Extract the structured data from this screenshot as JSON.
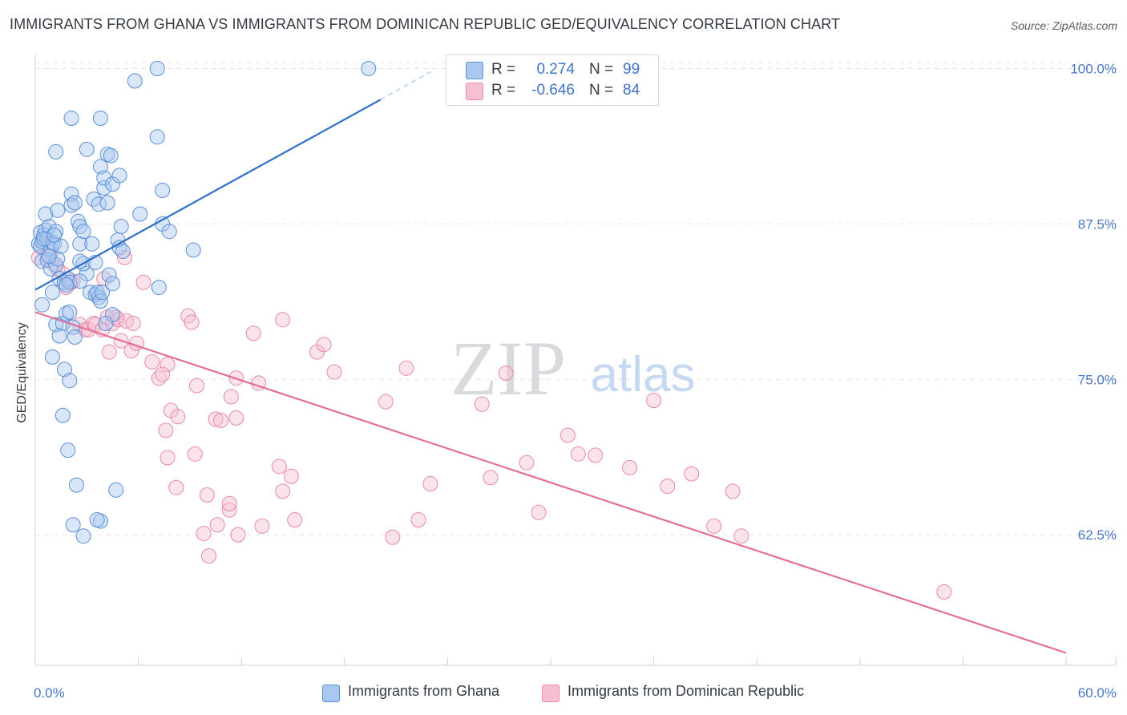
{
  "title": "IMMIGRANTS FROM GHANA VS IMMIGRANTS FROM DOMINICAN REPUBLIC GED/EQUIVALENCY CORRELATION CHART",
  "source": "Source: ZipAtlas.com",
  "watermark": {
    "zip": "ZIP",
    "atlas": "atlas"
  },
  "legend_top": {
    "rows": [
      {
        "r_label": "R =",
        "r_value": "0.274",
        "n_label": "N =",
        "n_value": "99"
      },
      {
        "r_label": "R =",
        "r_value": "-0.646",
        "n_label": "N =",
        "n_value": "84"
      }
    ]
  },
  "legend_bottom": [
    {
      "label": "Immigrants from Ghana"
    },
    {
      "label": "Immigrants from Dominican Republic"
    }
  ],
  "colors": {
    "ghana_fill": "#a8c8f0",
    "ghana_stroke": "#5b8fd6",
    "ghana_line": "#2f6fc9",
    "dr_fill": "#f6c0d2",
    "dr_stroke": "#e889a8",
    "dr_line": "#e0709a",
    "tick_text": "#4a78c8",
    "grid": "#e3e5e8"
  },
  "chart_data": {
    "type": "scatter",
    "title": "IMMIGRANTS FROM GHANA VS IMMIGRANTS FROM DOMINICAN REPUBLIC GED/EQUIVALENCY CORRELATION CHART",
    "xlabel": "",
    "ylabel": "GED/Equivalency",
    "xlim": [
      0,
      60
    ],
    "ylim": [
      52,
      101
    ],
    "x_tick_labels": [
      "0.0%",
      "60.0%"
    ],
    "y_ticks": [
      62.5,
      75.0,
      87.5,
      100.0
    ],
    "y_tick_labels": [
      "62.5%",
      "75.0%",
      "87.5%",
      "100.0%"
    ],
    "grid": true,
    "legend_position": "top-center",
    "series": [
      {
        "name": "Immigrants from Ghana",
        "r": 0.274,
        "n": 99,
        "trend": {
          "x": [
            0,
            20.1
          ],
          "y": [
            82.2,
            97.5
          ]
        },
        "trend_dashed": {
          "x": [
            20.1,
            23.1
          ],
          "y": [
            97.5,
            99.8
          ]
        },
        "points": [
          [
            0.2,
            85.9
          ],
          [
            0.3,
            85.7
          ],
          [
            0.3,
            86.8
          ],
          [
            0.4,
            86.1
          ],
          [
            0.5,
            86.6
          ],
          [
            0.6,
            87.0
          ],
          [
            0.4,
            84.5
          ],
          [
            0.7,
            86.3
          ],
          [
            0.8,
            87.3
          ],
          [
            0.9,
            85.5
          ],
          [
            1.0,
            86.0
          ],
          [
            1.1,
            85.9
          ],
          [
            1.2,
            86.9
          ],
          [
            0.6,
            88.3
          ],
          [
            1.3,
            88.6
          ],
          [
            1.5,
            85.7
          ],
          [
            0.7,
            84.6
          ],
          [
            0.9,
            83.9
          ],
          [
            1.2,
            84.2
          ],
          [
            1.0,
            82.0
          ],
          [
            1.4,
            83.1
          ],
          [
            1.7,
            82.8
          ],
          [
            0.4,
            81.0
          ],
          [
            1.2,
            79.4
          ],
          [
            1.6,
            79.5
          ],
          [
            1.4,
            78.5
          ],
          [
            1.0,
            76.8
          ],
          [
            1.8,
            80.3
          ],
          [
            1.9,
            83.1
          ],
          [
            2.0,
            82.8
          ],
          [
            1.7,
            75.8
          ],
          [
            2.0,
            74.9
          ],
          [
            1.6,
            72.1
          ],
          [
            1.9,
            69.3
          ],
          [
            2.4,
            66.5
          ],
          [
            2.2,
            63.3
          ],
          [
            2.8,
            62.4
          ],
          [
            3.8,
            63.6
          ],
          [
            3.6,
            63.7
          ],
          [
            4.7,
            66.1
          ],
          [
            2.1,
            89.9
          ],
          [
            2.1,
            89.0
          ],
          [
            2.3,
            89.2
          ],
          [
            2.5,
            87.7
          ],
          [
            2.6,
            87.3
          ],
          [
            2.6,
            85.9
          ],
          [
            2.8,
            86.9
          ],
          [
            3.3,
            85.9
          ],
          [
            3.4,
            89.5
          ],
          [
            3.7,
            89.1
          ],
          [
            4.0,
            90.4
          ],
          [
            4.2,
            89.2
          ],
          [
            3.8,
            92.1
          ],
          [
            4.0,
            91.2
          ],
          [
            4.2,
            93.1
          ],
          [
            4.4,
            93.0
          ],
          [
            4.5,
            90.7
          ],
          [
            4.9,
            91.4
          ],
          [
            5.0,
            87.3
          ],
          [
            4.8,
            86.2
          ],
          [
            4.9,
            85.6
          ],
          [
            5.1,
            85.3
          ],
          [
            6.1,
            88.3
          ],
          [
            7.4,
            87.5
          ],
          [
            7.8,
            86.9
          ],
          [
            9.2,
            85.4
          ],
          [
            3.0,
            83.5
          ],
          [
            3.2,
            82.0
          ],
          [
            3.5,
            81.8
          ],
          [
            3.7,
            81.6
          ],
          [
            3.6,
            82.0
          ],
          [
            3.8,
            81.3
          ],
          [
            3.9,
            82.0
          ],
          [
            4.3,
            83.4
          ],
          [
            4.5,
            82.7
          ],
          [
            4.5,
            80.2
          ],
          [
            4.1,
            79.5
          ],
          [
            2.6,
            82.9
          ],
          [
            2.8,
            84.3
          ],
          [
            3.5,
            84.4
          ],
          [
            2.0,
            80.4
          ],
          [
            2.2,
            79.2
          ],
          [
            2.3,
            78.4
          ],
          [
            1.2,
            93.3
          ],
          [
            2.1,
            96.0
          ],
          [
            3.8,
            96.0
          ],
          [
            3.0,
            93.5
          ],
          [
            7.1,
            94.5
          ],
          [
            5.8,
            99.0
          ],
          [
            7.1,
            100.0
          ],
          [
            19.4,
            100.0
          ],
          [
            7.4,
            90.2
          ],
          [
            7.2,
            82.4
          ],
          [
            1.3,
            84.7
          ],
          [
            0.8,
            84.9
          ],
          [
            1.8,
            82.6
          ],
          [
            0.5,
            86.3
          ],
          [
            1.1,
            86.6
          ],
          [
            2.6,
            84.5
          ]
        ]
      },
      {
        "name": "Immigrants from Dominican Republic",
        "r": -0.646,
        "n": 84,
        "trend": {
          "x": [
            0,
            60.0
          ],
          "y": [
            80.4,
            53.0
          ]
        },
        "points": [
          [
            0.2,
            84.8
          ],
          [
            0.4,
            85.6
          ],
          [
            0.9,
            85.2
          ],
          [
            1.0,
            84.4
          ],
          [
            1.3,
            83.9
          ],
          [
            1.6,
            83.5
          ],
          [
            1.8,
            82.4
          ],
          [
            2.1,
            82.8
          ],
          [
            2.2,
            82.9
          ],
          [
            2.6,
            79.4
          ],
          [
            2.9,
            79.0
          ],
          [
            3.1,
            79.0
          ],
          [
            3.4,
            79.5
          ],
          [
            3.5,
            79.4
          ],
          [
            3.9,
            79.0
          ],
          [
            4.0,
            83.1
          ],
          [
            4.2,
            80.0
          ],
          [
            4.5,
            79.5
          ],
          [
            4.8,
            79.8
          ],
          [
            5.2,
            84.8
          ],
          [
            5.3,
            79.7
          ],
          [
            5.0,
            78.1
          ],
          [
            4.3,
            77.2
          ],
          [
            4.7,
            80.0
          ],
          [
            5.7,
            79.5
          ],
          [
            5.6,
            77.3
          ],
          [
            5.9,
            77.9
          ],
          [
            6.3,
            82.8
          ],
          [
            6.8,
            76.4
          ],
          [
            7.2,
            75.1
          ],
          [
            7.7,
            76.2
          ],
          [
            7.4,
            75.4
          ],
          [
            7.9,
            72.5
          ],
          [
            8.3,
            72.0
          ],
          [
            7.6,
            70.9
          ],
          [
            7.7,
            68.7
          ],
          [
            8.9,
            80.1
          ],
          [
            9.1,
            79.6
          ],
          [
            9.4,
            74.5
          ],
          [
            9.3,
            69.0
          ],
          [
            10.5,
            71.8
          ],
          [
            10.8,
            71.7
          ],
          [
            11.4,
            73.6
          ],
          [
            11.7,
            75.1
          ],
          [
            11.7,
            71.9
          ],
          [
            12.7,
            78.7
          ],
          [
            13.0,
            74.7
          ],
          [
            14.4,
            79.8
          ],
          [
            14.2,
            68.0
          ],
          [
            14.9,
            67.2
          ],
          [
            15.1,
            63.7
          ],
          [
            14.4,
            66.0
          ],
          [
            11.3,
            64.5
          ],
          [
            10.0,
            65.7
          ],
          [
            9.8,
            62.6
          ],
          [
            10.6,
            63.3
          ],
          [
            11.8,
            62.5
          ],
          [
            13.2,
            63.2
          ],
          [
            10.1,
            60.8
          ],
          [
            8.2,
            66.3
          ],
          [
            11.3,
            65.0
          ],
          [
            16.4,
            77.2
          ],
          [
            16.8,
            77.8
          ],
          [
            17.4,
            75.6
          ],
          [
            20.4,
            73.2
          ],
          [
            21.6,
            75.9
          ],
          [
            22.3,
            63.7
          ],
          [
            20.8,
            62.3
          ],
          [
            23.0,
            66.6
          ],
          [
            26.0,
            73.0
          ],
          [
            27.4,
            75.5
          ],
          [
            26.5,
            67.1
          ],
          [
            28.6,
            68.3
          ],
          [
            29.3,
            64.3
          ],
          [
            31.0,
            70.5
          ],
          [
            31.6,
            69.0
          ],
          [
            32.6,
            68.9
          ],
          [
            34.6,
            67.9
          ],
          [
            36.0,
            73.3
          ],
          [
            36.8,
            66.4
          ],
          [
            38.2,
            67.4
          ],
          [
            39.5,
            63.2
          ],
          [
            40.6,
            66.0
          ],
          [
            41.1,
            62.4
          ],
          [
            52.9,
            57.9
          ]
        ]
      }
    ]
  }
}
